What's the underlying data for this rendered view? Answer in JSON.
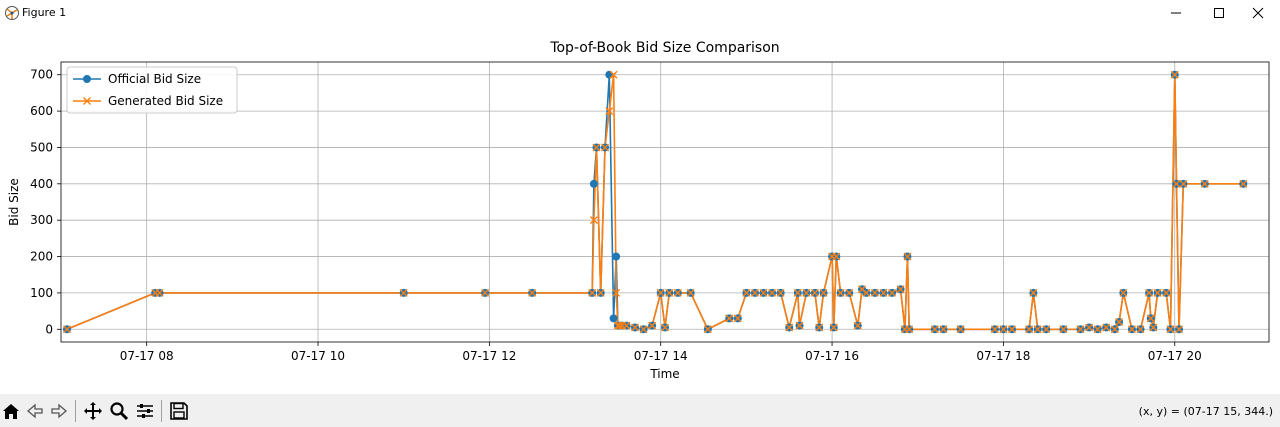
{
  "window": {
    "title": "Figure 1",
    "coords": "(x, y) = (07-17 15, 344.)"
  },
  "toolbar": {
    "icons": [
      "home-icon",
      "back-icon",
      "forward-icon",
      "pan-icon",
      "zoom-icon",
      "configure-icon",
      "save-icon"
    ]
  },
  "chart_data": {
    "type": "line",
    "title": "Top-of-Book Bid Size Comparison",
    "xlabel": "Time",
    "ylabel": "Bid Size",
    "xlim": [
      7.0,
      21.1
    ],
    "ylim": [
      -35,
      735
    ],
    "xticks": [
      8,
      10,
      12,
      14,
      16,
      18,
      20
    ],
    "xtick_labels": [
      "07-17 08",
      "07-17 10",
      "07-17 12",
      "07-17 14",
      "07-17 16",
      "07-17 18",
      "07-17 20"
    ],
    "yticks": [
      0,
      100,
      200,
      300,
      400,
      500,
      600,
      700
    ],
    "ytick_labels": [
      "0",
      "100",
      "200",
      "300",
      "400",
      "500",
      "600",
      "700"
    ],
    "grid": true,
    "legend_position": "upper-left",
    "series": [
      {
        "name": "Official Bid Size",
        "color": "#1f77b4",
        "marker": "circle",
        "x": [
          7.07,
          8.1,
          8.15,
          11.0,
          11.95,
          12.5,
          13.2,
          13.22,
          13.25,
          13.3,
          13.35,
          13.4,
          13.45,
          13.48,
          13.5,
          13.52,
          13.55,
          13.6,
          13.7,
          13.8,
          13.9,
          14.0,
          14.05,
          14.1,
          14.2,
          14.35,
          14.55,
          14.8,
          14.9,
          15.0,
          15.1,
          15.2,
          15.3,
          15.4,
          15.5,
          15.6,
          15.62,
          15.7,
          15.8,
          15.85,
          15.9,
          16.0,
          16.02,
          16.05,
          16.1,
          16.2,
          16.3,
          16.35,
          16.4,
          16.5,
          16.6,
          16.7,
          16.8,
          16.85,
          16.88,
          16.9,
          17.2,
          17.3,
          17.5,
          17.9,
          18.0,
          18.1,
          18.3,
          18.35,
          18.4,
          18.5,
          18.7,
          18.9,
          19.0,
          19.1,
          19.2,
          19.3,
          19.35,
          19.4,
          19.5,
          19.6,
          19.7,
          19.72,
          19.75,
          19.8,
          19.9,
          19.95,
          20.0,
          20.02,
          20.05,
          20.1,
          20.35,
          20.8
        ],
        "y": [
          0,
          100,
          100,
          100,
          100,
          100,
          100,
          400,
          500,
          100,
          500,
          700,
          30,
          200,
          10,
          10,
          10,
          10,
          5,
          0,
          10,
          100,
          5,
          100,
          100,
          100,
          0,
          30,
          30,
          100,
          100,
          100,
          100,
          100,
          5,
          100,
          10,
          100,
          100,
          5,
          100,
          200,
          5,
          200,
          100,
          100,
          10,
          110,
          100,
          100,
          100,
          100,
          110,
          0,
          200,
          0,
          0,
          0,
          0,
          0,
          0,
          0,
          0,
          100,
          0,
          0,
          0,
          0,
          5,
          0,
          5,
          0,
          20,
          100,
          0,
          0,
          100,
          30,
          5,
          100,
          100,
          0,
          700,
          400,
          0,
          400,
          400,
          400
        ]
      },
      {
        "name": "Generated Bid Size",
        "color": "#ff7f0e",
        "marker": "x",
        "x": [
          7.07,
          8.1,
          8.15,
          11.0,
          11.95,
          12.5,
          13.2,
          13.22,
          13.25,
          13.3,
          13.35,
          13.4,
          13.45,
          13.48,
          13.5,
          13.52,
          13.55,
          13.6,
          13.7,
          13.8,
          13.9,
          14.0,
          14.05,
          14.1,
          14.2,
          14.35,
          14.55,
          14.8,
          14.9,
          15.0,
          15.1,
          15.2,
          15.3,
          15.4,
          15.5,
          15.6,
          15.62,
          15.7,
          15.8,
          15.85,
          15.9,
          16.0,
          16.02,
          16.05,
          16.1,
          16.2,
          16.3,
          16.35,
          16.4,
          16.5,
          16.6,
          16.7,
          16.8,
          16.85,
          16.88,
          16.9,
          17.2,
          17.3,
          17.5,
          17.9,
          18.0,
          18.1,
          18.3,
          18.35,
          18.4,
          18.5,
          18.7,
          18.9,
          19.0,
          19.1,
          19.2,
          19.3,
          19.35,
          19.4,
          19.5,
          19.6,
          19.7,
          19.72,
          19.75,
          19.8,
          19.9,
          19.95,
          20.0,
          20.02,
          20.05,
          20.1,
          20.35,
          20.8
        ],
        "y": [
          0,
          100,
          100,
          100,
          100,
          100,
          100,
          300,
          500,
          100,
          500,
          600,
          700,
          100,
          10,
          10,
          10,
          10,
          5,
          0,
          10,
          100,
          5,
          100,
          100,
          100,
          0,
          30,
          30,
          100,
          100,
          100,
          100,
          100,
          5,
          100,
          10,
          100,
          100,
          5,
          100,
          200,
          5,
          200,
          100,
          100,
          10,
          110,
          100,
          100,
          100,
          100,
          110,
          0,
          200,
          0,
          0,
          0,
          0,
          0,
          0,
          0,
          0,
          100,
          0,
          0,
          0,
          0,
          5,
          0,
          5,
          0,
          20,
          100,
          0,
          0,
          100,
          30,
          5,
          100,
          100,
          0,
          700,
          400,
          0,
          400,
          400,
          400
        ]
      }
    ]
  }
}
